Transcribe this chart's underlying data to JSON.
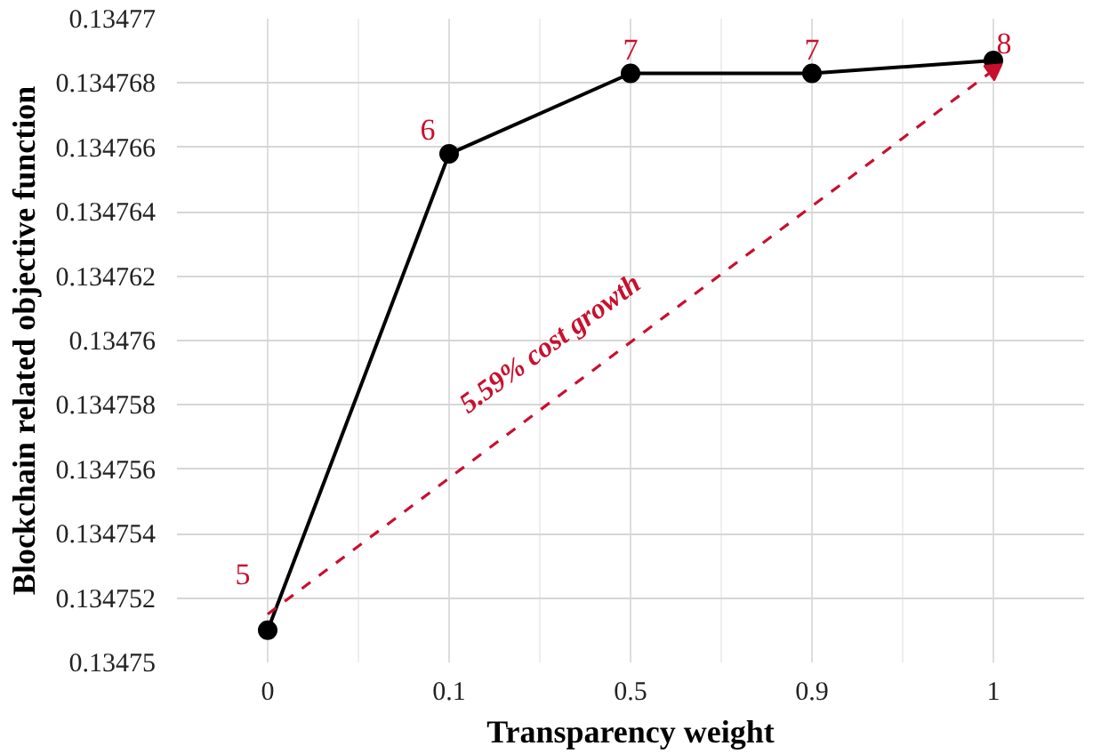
{
  "chart_data": {
    "type": "line",
    "xlabel": "Transparency weight",
    "ylabel": "Blockchain related objective function",
    "categories": [
      "0",
      "0.1",
      "0.5",
      "0.9",
      "1"
    ],
    "series": [
      {
        "color": "#000000",
        "values": [
          0.134751,
          0.1347658,
          0.1347683,
          0.1347683,
          0.1347687
        ]
      },
      {
        "type": "line",
        "x": [
          "0",
          "1"
        ],
        "color": "#c8102e",
        "line_style": "dashed",
        "marker": "triangle",
        "values": [
          0.1347515,
          0.1347684
        ]
      }
    ],
    "ylim": [
      0.13475,
      0.13477
    ],
    "yticks": [
      0.13475,
      0.134752,
      0.134754,
      0.134756,
      0.134758,
      0.13476,
      0.134762,
      0.134764,
      0.134766,
      0.134768,
      0.13477
    ],
    "grid": true,
    "marker": "circle",
    "line_style": "solid",
    "annotations": [
      {
        "text": "5",
        "x": "0",
        "y": 0.134751
      },
      {
        "text": "6",
        "x": "0.1",
        "y": 0.1347658
      },
      {
        "text": "7",
        "x": "0.5",
        "y": 0.1347683
      },
      {
        "text": "7",
        "x": "0.9",
        "y": 0.1347683
      },
      {
        "text": "8",
        "x": "1",
        "y": 0.1347687
      },
      "5.59% cost growth"
    ]
  }
}
